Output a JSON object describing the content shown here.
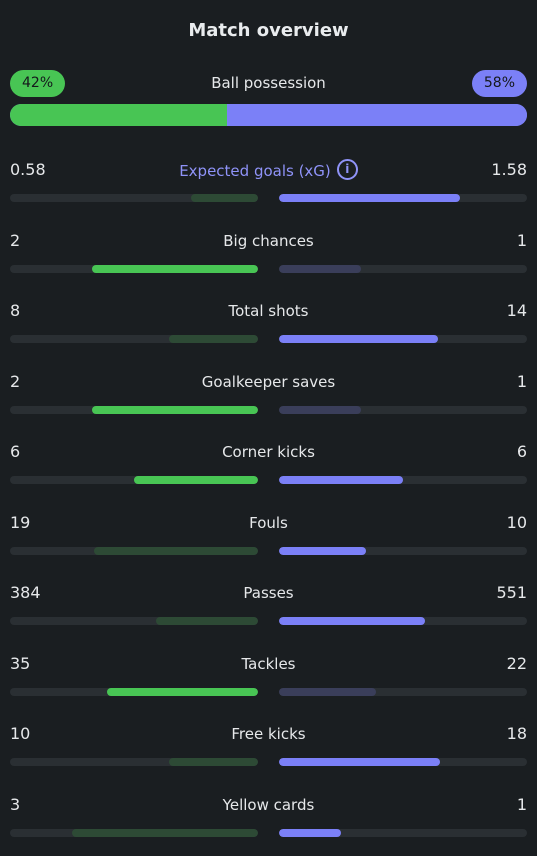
{
  "title": "Match overview",
  "possession": {
    "label": "Ball possession",
    "home": "42%",
    "away": "58%",
    "home_fraction": 0.42
  },
  "colors": {
    "home_strong": "#48c554",
    "home_weak": "#2d4a35",
    "away_strong": "#7b80f7",
    "away_weak": "#3a3e5a"
  },
  "stats": [
    {
      "label": "Expected goals (xG)",
      "home": "0.58",
      "away": "1.58",
      "home_fill": 0.27,
      "away_fill": 0.73,
      "home_strong": false,
      "away_strong": true,
      "info_icon": "info-icon"
    },
    {
      "label": "Big chances",
      "home": "2",
      "away": "1",
      "home_fill": 0.67,
      "away_fill": 0.33,
      "home_strong": true,
      "away_strong": false
    },
    {
      "label": "Total shots",
      "home": "8",
      "away": "14",
      "home_fill": 0.36,
      "away_fill": 0.64,
      "home_strong": false,
      "away_strong": true
    },
    {
      "label": "Goalkeeper saves",
      "home": "2",
      "away": "1",
      "home_fill": 0.67,
      "away_fill": 0.33,
      "home_strong": true,
      "away_strong": false
    },
    {
      "label": "Corner kicks",
      "home": "6",
      "away": "6",
      "home_fill": 0.5,
      "away_fill": 0.5,
      "home_strong": true,
      "away_strong": true
    },
    {
      "label": "Fouls",
      "home": "19",
      "away": "10",
      "home_fill": 0.66,
      "away_fill": 0.35,
      "home_strong": false,
      "away_strong": true
    },
    {
      "label": "Passes",
      "home": "384",
      "away": "551",
      "home_fill": 0.41,
      "away_fill": 0.59,
      "home_strong": false,
      "away_strong": true
    },
    {
      "label": "Tackles",
      "home": "35",
      "away": "22",
      "home_fill": 0.61,
      "away_fill": 0.39,
      "home_strong": true,
      "away_strong": false
    },
    {
      "label": "Free kicks",
      "home": "10",
      "away": "18",
      "home_fill": 0.36,
      "away_fill": 0.65,
      "home_strong": false,
      "away_strong": true
    },
    {
      "label": "Yellow cards",
      "home": "3",
      "away": "1",
      "home_fill": 0.75,
      "away_fill": 0.25,
      "home_strong": false,
      "away_strong": true
    }
  ]
}
